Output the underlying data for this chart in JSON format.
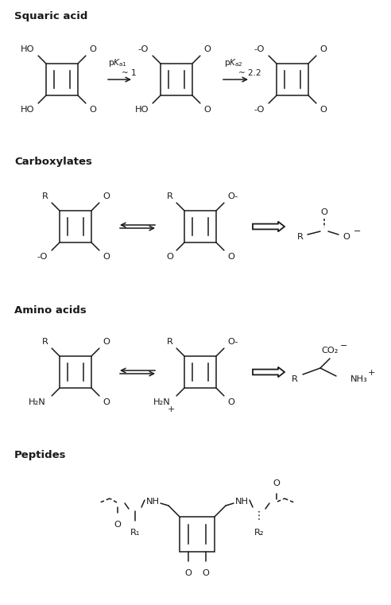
{
  "bg_color": "#ffffff",
  "line_color": "#1a1a1a",
  "section_labels": [
    "Squaric acid",
    "Carboxylates",
    "Amino acids",
    "Peptides"
  ],
  "figsize": [
    4.92,
    7.61
  ],
  "dpi": 100
}
